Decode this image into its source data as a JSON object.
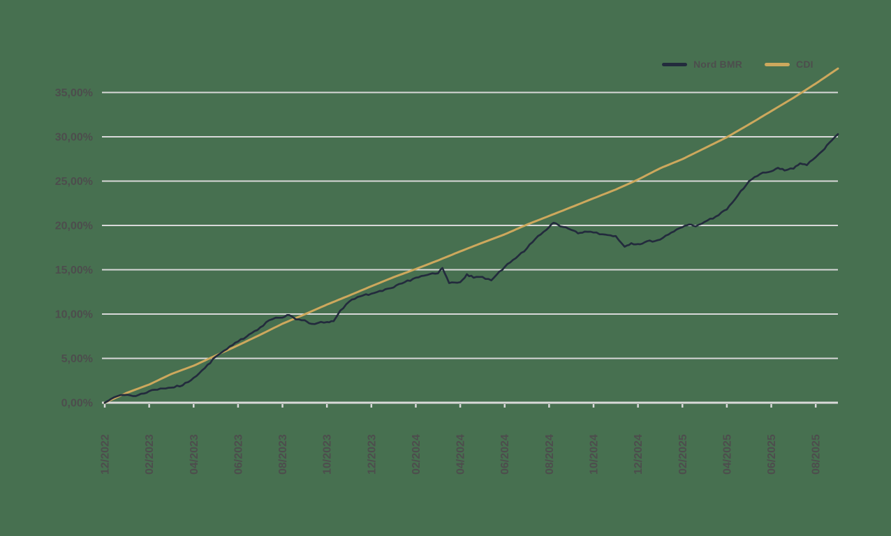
{
  "background_color": "#477050",
  "chart_data": {
    "type": "line",
    "title": "",
    "xlabel": "",
    "ylabel": "",
    "x_unit": "months since 12/2022",
    "ylim": [
      0,
      35
    ],
    "grid": "horizontal",
    "legend_position": "top-right",
    "axis_text_color": "#4d4d4d",
    "gridline_color": "#d9d9d9",
    "y_ticks": [
      {
        "value": 0,
        "label": "0,00%"
      },
      {
        "value": 5,
        "label": "5,00%"
      },
      {
        "value": 10,
        "label": "10,00%"
      },
      {
        "value": 15,
        "label": "15,00%"
      },
      {
        "value": 20,
        "label": "20,00%"
      },
      {
        "value": 25,
        "label": "25,00%"
      },
      {
        "value": 30,
        "label": "30,00%"
      },
      {
        "value": 35,
        "label": "35,00%"
      }
    ],
    "x_tick_positions_months": [
      0,
      2,
      4,
      6,
      8,
      10,
      12,
      14,
      16,
      18,
      20,
      22,
      24,
      26,
      28,
      30,
      32
    ],
    "x_tick_labels": [
      "12/2022",
      "02/2023",
      "04/2023",
      "06/2023",
      "08/2023",
      "10/2023",
      "12/2023",
      "02/2024",
      "04/2024",
      "06/2024",
      "08/2024",
      "10/2024",
      "12/2024",
      "02/2025",
      "04/2025",
      "06/2025",
      "08/2025"
    ],
    "series": [
      {
        "name": "Nord BMR",
        "color": "#232b3d",
        "style": "noisy",
        "points_month_pct": [
          [
            0,
            0
          ],
          [
            0.3,
            0.45
          ],
          [
            0.7,
            0.85
          ],
          [
            1,
            0.9
          ],
          [
            1.4,
            0.75
          ],
          [
            2,
            1.3
          ],
          [
            2.5,
            1.6
          ],
          [
            3,
            1.7
          ],
          [
            3.5,
            1.95
          ],
          [
            4,
            2.8
          ],
          [
            4.5,
            3.9
          ],
          [
            5,
            5.2
          ],
          [
            5.5,
            6.05
          ],
          [
            6,
            6.9
          ],
          [
            6.5,
            7.7
          ],
          [
            7,
            8.5
          ],
          [
            7.4,
            9.3
          ],
          [
            7.7,
            9.6
          ],
          [
            8,
            9.6
          ],
          [
            8.3,
            9.9
          ],
          [
            8.6,
            9.4
          ],
          [
            9,
            9.3
          ],
          [
            9.3,
            8.9
          ],
          [
            9.6,
            9.0
          ],
          [
            10,
            9.1
          ],
          [
            10.3,
            9.2
          ],
          [
            10.6,
            10.4
          ],
          [
            11,
            11.4
          ],
          [
            11.5,
            12.0
          ],
          [
            12,
            12.3
          ],
          [
            12.5,
            12.6
          ],
          [
            13,
            13.0
          ],
          [
            13.5,
            13.6
          ],
          [
            14,
            14.1
          ],
          [
            14.5,
            14.4
          ],
          [
            15,
            14.6
          ],
          [
            15.2,
            15.2
          ],
          [
            15.5,
            13.5
          ],
          [
            16,
            13.6
          ],
          [
            16.3,
            14.5
          ],
          [
            16.6,
            14.1
          ],
          [
            17,
            14.2
          ],
          [
            17.4,
            13.8
          ],
          [
            18,
            15.3
          ],
          [
            18.5,
            16.3
          ],
          [
            19,
            17.4
          ],
          [
            19.5,
            18.8
          ],
          [
            20,
            19.8
          ],
          [
            20.2,
            20.3
          ],
          [
            20.5,
            19.9
          ],
          [
            21,
            19.5
          ],
          [
            21.3,
            19.1
          ],
          [
            21.6,
            19.3
          ],
          [
            22,
            19.2
          ],
          [
            22.4,
            19.0
          ],
          [
            23,
            18.8
          ],
          [
            23.4,
            17.6
          ],
          [
            23.7,
            18.0
          ],
          [
            24,
            17.9
          ],
          [
            24.3,
            18.1
          ],
          [
            25,
            18.4
          ],
          [
            25.5,
            19.2
          ],
          [
            26,
            19.8
          ],
          [
            26.3,
            20.1
          ],
          [
            26.6,
            19.9
          ],
          [
            27,
            20.4
          ],
          [
            27.5,
            21.0
          ],
          [
            28,
            21.8
          ],
          [
            28.5,
            23.4
          ],
          [
            29,
            25.0
          ],
          [
            29.5,
            25.8
          ],
          [
            30,
            26.1
          ],
          [
            30.3,
            26.5
          ],
          [
            30.6,
            26.2
          ],
          [
            31,
            26.4
          ],
          [
            31.3,
            27.0
          ],
          [
            31.6,
            26.8
          ],
          [
            32,
            27.7
          ],
          [
            32.3,
            28.4
          ],
          [
            32.6,
            29.3
          ],
          [
            33,
            30.3
          ]
        ]
      },
      {
        "name": "CDI",
        "color": "#cda85d",
        "style": "smooth",
        "points_month_pct": [
          [
            0,
            0
          ],
          [
            1,
            1.12
          ],
          [
            2,
            2.05
          ],
          [
            3,
            3.24
          ],
          [
            4,
            4.17
          ],
          [
            5,
            5.33
          ],
          [
            6,
            6.47
          ],
          [
            7,
            7.67
          ],
          [
            8,
            8.91
          ],
          [
            9,
            9.97
          ],
          [
            10,
            11.07
          ],
          [
            11,
            12.09
          ],
          [
            12,
            13.14
          ],
          [
            13,
            14.16
          ],
          [
            14,
            15.08
          ],
          [
            15,
            16.05
          ],
          [
            16,
            17.07
          ],
          [
            17,
            18.05
          ],
          [
            18,
            18.99
          ],
          [
            19,
            20.09
          ],
          [
            20,
            21.07
          ],
          [
            21,
            22.06
          ],
          [
            22,
            23.06
          ],
          [
            23,
            24.05
          ],
          [
            24,
            25.17
          ],
          [
            25,
            26.45
          ],
          [
            26,
            27.48
          ],
          [
            27,
            28.71
          ],
          [
            28,
            29.95
          ],
          [
            29,
            31.4
          ],
          [
            30,
            32.9
          ],
          [
            31,
            34.4
          ],
          [
            32,
            36.0
          ],
          [
            33,
            37.7
          ]
        ]
      }
    ]
  }
}
